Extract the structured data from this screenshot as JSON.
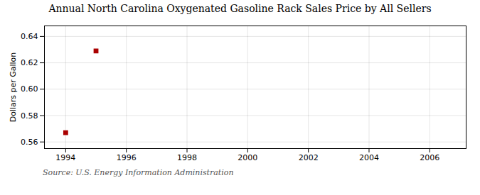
{
  "chart_data": {
    "type": "scatter",
    "title": "Annual North Carolina Oxygenated Gasoline Rack Sales Price by All Sellers",
    "ylabel": "Dollars per Gallon",
    "x": [
      1994,
      1995
    ],
    "values": [
      0.567,
      0.629
    ],
    "color": "#aa0000",
    "marker": "square",
    "xlim": [
      1993.3,
      2007.2
    ],
    "ylim": [
      0.555,
      0.648
    ],
    "xticks": [
      1994,
      1996,
      1998,
      2000,
      2002,
      2004,
      2006
    ],
    "yticks": [
      0.56,
      0.58,
      {
        "value": 0.6,
        "label": "0.60"
      },
      0.62,
      0.64
    ],
    "grid": true,
    "annotation": "Source: U.S. Energy Information Administration"
  }
}
